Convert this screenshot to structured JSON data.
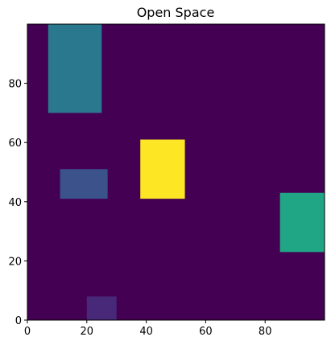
{
  "chart_data": {
    "type": "heatmap",
    "title": "Open Space",
    "xlabel": "",
    "ylabel": "",
    "xlim": [
      0,
      100
    ],
    "ylim": [
      0,
      100
    ],
    "origin": "lower",
    "grid": false,
    "colormap": "viridis",
    "background_value": 0,
    "background_color": "#440154",
    "x_ticks": [
      0,
      20,
      40,
      60,
      80
    ],
    "y_ticks": [
      0,
      20,
      40,
      60,
      80
    ],
    "regions": [
      {
        "x0": 7,
        "x1": 25,
        "y0": 70,
        "y1": 100,
        "color": "#2a788e"
      },
      {
        "x0": 38,
        "x1": 53,
        "y0": 41,
        "y1": 61,
        "color": "#fde725"
      },
      {
        "x0": 11,
        "x1": 27,
        "y0": 41,
        "y1": 51,
        "color": "#3b528b"
      },
      {
        "x0": 85,
        "x1": 100,
        "y0": 23,
        "y1": 43,
        "color": "#21a685"
      },
      {
        "x0": 20,
        "x1": 30,
        "y0": 0,
        "y1": 8,
        "color": "#482878"
      }
    ]
  }
}
